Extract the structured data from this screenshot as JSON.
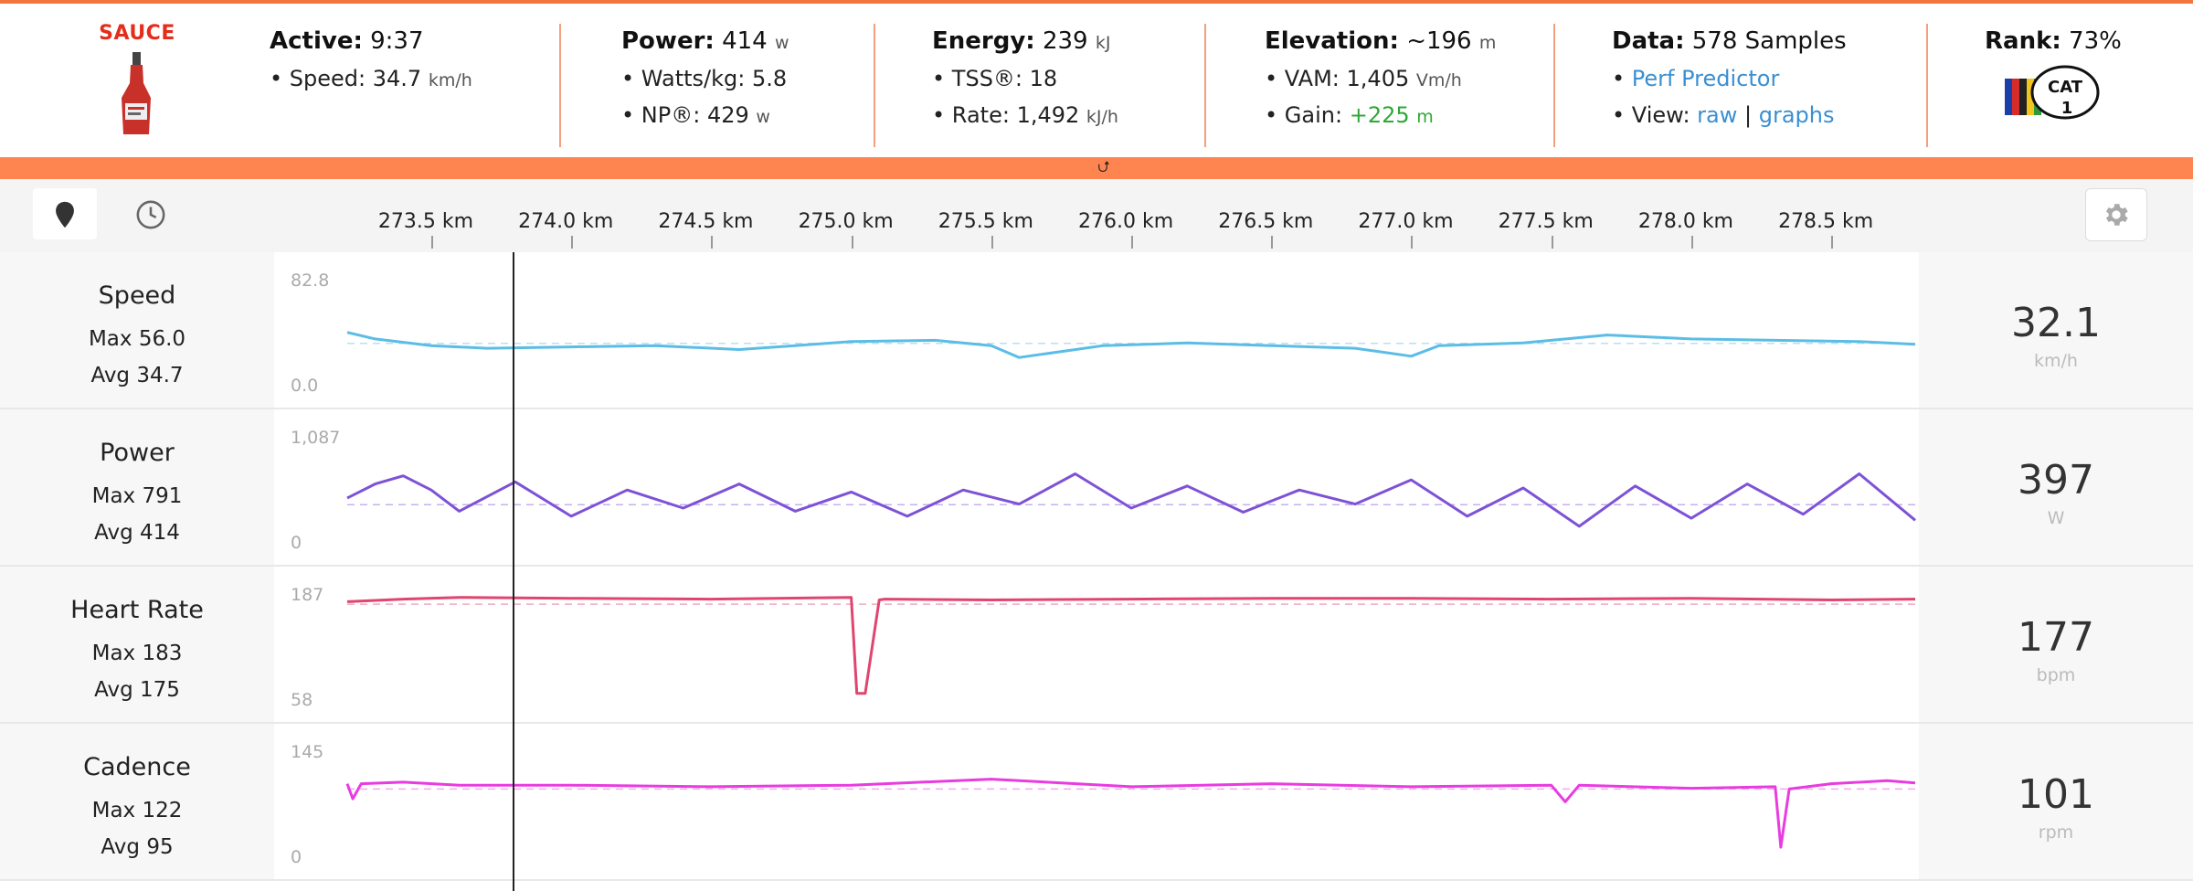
{
  "brand": "SAUCE",
  "stats": {
    "active": {
      "label": "Active:",
      "value": "9:37",
      "speed_label": "Speed:",
      "speed_value": "34.7",
      "speed_unit": "km/h"
    },
    "power": {
      "label": "Power:",
      "value": "414",
      "unit": "w",
      "wkg_label": "Watts/kg:",
      "wkg_value": "5.8",
      "np_label": "NP®:",
      "np_value": "429",
      "np_unit": "w"
    },
    "energy": {
      "label": "Energy:",
      "value": "239",
      "unit": "kJ",
      "tss_label": "TSS®:",
      "tss_value": "18",
      "rate_label": "Rate:",
      "rate_value": "1,492",
      "rate_unit": "kJ/h"
    },
    "elevation": {
      "label": "Elevation:",
      "value": "~196",
      "unit": "m",
      "vam_label": "VAM:",
      "vam_value": "1,405",
      "vam_unit": "Vm/h",
      "gain_label": "Gain:",
      "gain_value": "+225",
      "gain_unit": "m"
    },
    "data": {
      "label": "Data:",
      "value": "578 Samples",
      "predictor": "Perf Predictor",
      "view_label": "View:",
      "view_raw": "raw",
      "view_sep": "|",
      "view_graphs": "graphs"
    },
    "rank": {
      "label": "Rank:",
      "value": "73%",
      "badge": "CAT",
      "badge_num": "1"
    }
  },
  "toolbar": {
    "pin_icon": "map-pin-icon",
    "clock_icon": "clock-icon",
    "settings_icon": "gear-icon"
  },
  "colors": {
    "accent": "#ff8550",
    "speed": "#5bbde6",
    "power": "#7e52d6",
    "heart_rate": "#e0456f",
    "cadence": "#e83ce0"
  },
  "chart_data": {
    "type": "line",
    "x_axis": {
      "ticks": [
        "273.5 km",
        "274.0 km",
        "274.5 km",
        "275.0 km",
        "275.5 km",
        "276.0 km",
        "276.5 km",
        "277.0 km",
        "277.5 km",
        "278.0 km",
        "278.5 km"
      ]
    },
    "series": [
      {
        "name": "Speed",
        "max_label": "Max 56.0",
        "avg_label": "Avg 34.7",
        "y_max": "82.8",
        "y_min": "0.0",
        "current": "32.1",
        "unit": "km/h",
        "x": [
          273.2,
          273.3,
          273.5,
          273.7,
          274.0,
          274.3,
          274.6,
          274.8,
          275.0,
          275.3,
          275.5,
          275.6,
          275.9,
          276.2,
          276.5,
          276.8,
          277.0,
          277.1,
          277.4,
          277.7,
          278.0,
          278.3,
          278.6,
          278.8
        ],
        "values": [
          43,
          38,
          33,
          31,
          32,
          33,
          30,
          33,
          36,
          37,
          33,
          24,
          33,
          35,
          33,
          31,
          25,
          33,
          35,
          41,
          38,
          37,
          36,
          34
        ]
      },
      {
        "name": "Power",
        "max_label": "Max 791",
        "avg_label": "Avg 414",
        "y_max": "1,087",
        "y_min": "0",
        "current": "397",
        "unit": "W",
        "x": [
          273.2,
          273.3,
          273.4,
          273.5,
          273.6,
          273.8,
          274.0,
          274.2,
          274.4,
          274.6,
          274.8,
          275.0,
          275.2,
          275.4,
          275.6,
          275.8,
          276.0,
          276.2,
          276.4,
          276.6,
          276.8,
          277.0,
          277.2,
          277.4,
          277.6,
          277.8,
          278.0,
          278.2,
          278.4,
          278.6,
          278.8
        ],
        "values": [
          480,
          620,
          700,
          560,
          350,
          640,
          300,
          560,
          380,
          620,
          350,
          540,
          300,
          560,
          420,
          720,
          380,
          600,
          340,
          560,
          420,
          660,
          300,
          580,
          200,
          600,
          280,
          620,
          320,
          720,
          260
        ]
      },
      {
        "name": "Heart Rate",
        "max_label": "Max 183",
        "avg_label": "Avg 175",
        "y_max": "187",
        "y_min": "58",
        "current": "177",
        "unit": "bpm",
        "x": [
          273.2,
          273.4,
          273.6,
          274.0,
          274.5,
          275.0,
          275.02,
          275.05,
          275.1,
          275.12,
          275.5,
          276.0,
          276.5,
          277.0,
          277.5,
          278.0,
          278.5,
          278.8
        ],
        "values": [
          178,
          181,
          183,
          182,
          181,
          183,
          70,
          70,
          180,
          181,
          180,
          181,
          182,
          182,
          181,
          182,
          180,
          181
        ]
      },
      {
        "name": "Cadence",
        "max_label": "Max 122",
        "avg_label": "Avg 95",
        "y_max": "145",
        "y_min": "0",
        "current": "101",
        "unit": "rpm",
        "x": [
          273.2,
          273.22,
          273.25,
          273.4,
          273.6,
          274.0,
          274.5,
          275.0,
          275.5,
          276.0,
          276.5,
          277.0,
          277.5,
          277.55,
          277.6,
          278.0,
          278.3,
          278.32,
          278.35,
          278.5,
          278.7,
          278.8
        ],
        "values": [
          102,
          82,
          102,
          104,
          100,
          100,
          98,
          100,
          108,
          98,
          102,
          98,
          100,
          78,
          100,
          96,
          98,
          18,
          95,
          102,
          106,
          103
        ]
      }
    ],
    "x_range": [
      273.2,
      278.8
    ],
    "grid": false,
    "avg_line": "dashed"
  }
}
